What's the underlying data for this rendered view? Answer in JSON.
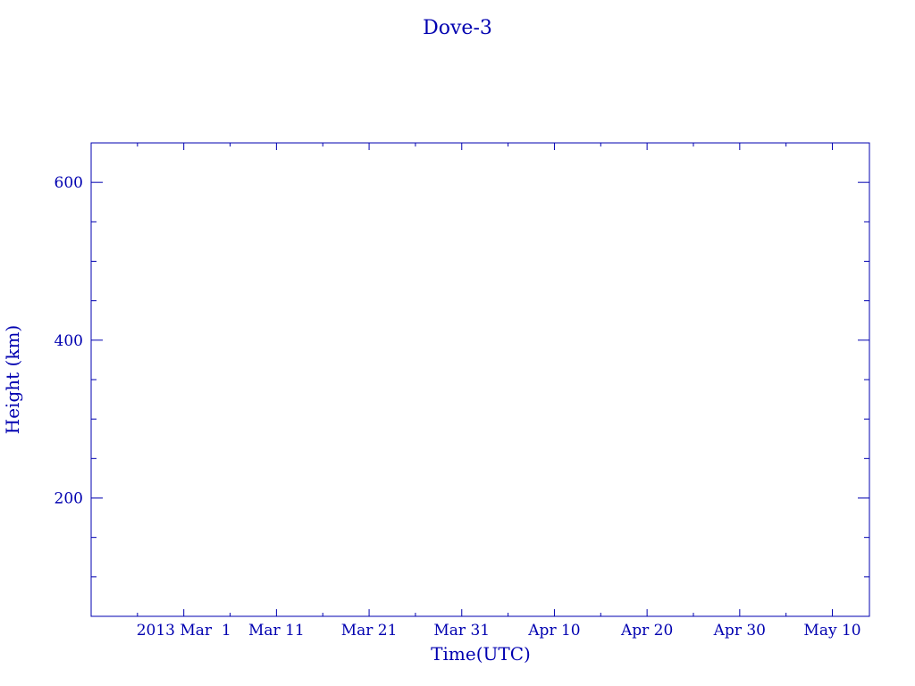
{
  "chart_data": {
    "type": "line",
    "title": "Dove-3",
    "xlabel": "Time(UTC)",
    "ylabel": "Height (km)",
    "xlim": [
      "2013-02-19",
      "2013-05-14"
    ],
    "ylim": [
      50,
      650
    ],
    "x_ticks": [
      {
        "date": "2013-03-01",
        "label": "2013 Mar  1"
      },
      {
        "date": "2013-03-11",
        "label": "Mar 11"
      },
      {
        "date": "2013-03-21",
        "label": "Mar 21"
      },
      {
        "date": "2013-03-31",
        "label": "Mar 31"
      },
      {
        "date": "2013-04-10",
        "label": "Apr 10"
      },
      {
        "date": "2013-04-20",
        "label": "Apr 20"
      },
      {
        "date": "2013-04-30",
        "label": "Apr 30"
      },
      {
        "date": "2013-05-10",
        "label": "May 10"
      }
    ],
    "y_ticks": [
      200,
      400,
      600
    ],
    "x_minor_step_days": 5,
    "y_minor_step": 50,
    "grid": false,
    "series": [],
    "color": "#0000b0"
  }
}
